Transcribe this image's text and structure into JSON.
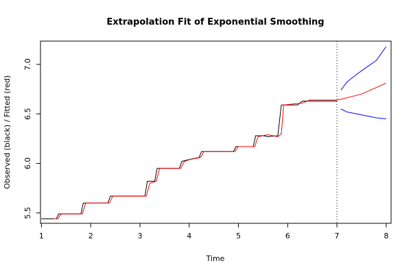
{
  "chart_data": {
    "type": "line",
    "title": "Extrapolation Fit of Exponential Smoothing",
    "xlabel": "Time",
    "ylabel": "Observed (black) / Fitted (red)",
    "xlim": [
      0.98,
      8.1
    ],
    "ylim": [
      5.395,
      7.235
    ],
    "x_ticks": [
      1,
      2,
      3,
      4,
      5,
      6,
      7,
      8
    ],
    "y_ticks": [
      5.5,
      6.0,
      6.5,
      7.0
    ],
    "y_tick_labels": [
      "5.5",
      "6.0",
      "6.5",
      "7.0"
    ],
    "forecast_origin": 7,
    "grid": false,
    "legend": null,
    "series": [
      {
        "role": "observed",
        "color": "#000000",
        "points": [
          [
            1.0,
            5.44
          ],
          [
            1.3,
            5.44
          ],
          [
            1.35,
            5.49
          ],
          [
            1.8,
            5.49
          ],
          [
            1.85,
            5.6
          ],
          [
            2.35,
            5.6
          ],
          [
            2.4,
            5.67
          ],
          [
            3.1,
            5.67
          ],
          [
            3.15,
            5.82
          ],
          [
            3.3,
            5.82
          ],
          [
            3.35,
            5.95
          ],
          [
            3.8,
            5.95
          ],
          [
            3.85,
            6.02
          ],
          [
            4.0,
            6.04
          ],
          [
            4.2,
            6.06
          ],
          [
            4.25,
            6.12
          ],
          [
            4.9,
            6.12
          ],
          [
            4.95,
            6.17
          ],
          [
            5.3,
            6.17
          ],
          [
            5.35,
            6.28
          ],
          [
            5.5,
            6.28
          ],
          [
            5.6,
            6.27
          ],
          [
            5.8,
            6.28
          ],
          [
            5.87,
            6.59
          ],
          [
            6.2,
            6.59
          ],
          [
            6.3,
            6.63
          ],
          [
            7.0,
            6.63
          ]
        ]
      },
      {
        "role": "fitted",
        "color": "#ff0000",
        "points": [
          [
            1.25,
            5.44
          ],
          [
            1.33,
            5.44
          ],
          [
            1.4,
            5.49
          ],
          [
            1.83,
            5.49
          ],
          [
            1.9,
            5.6
          ],
          [
            2.38,
            5.6
          ],
          [
            2.45,
            5.67
          ],
          [
            3.13,
            5.67
          ],
          [
            3.2,
            5.8
          ],
          [
            3.33,
            5.82
          ],
          [
            3.4,
            5.95
          ],
          [
            3.83,
            5.95
          ],
          [
            3.9,
            6.02
          ],
          [
            4.02,
            6.04
          ],
          [
            4.23,
            6.06
          ],
          [
            4.3,
            6.12
          ],
          [
            4.93,
            6.12
          ],
          [
            5.0,
            6.17
          ],
          [
            5.33,
            6.17
          ],
          [
            5.4,
            6.27
          ],
          [
            5.6,
            6.29
          ],
          [
            5.8,
            6.27
          ],
          [
            5.87,
            6.3
          ],
          [
            5.92,
            6.59
          ],
          [
            6.3,
            6.61
          ],
          [
            6.45,
            6.64
          ],
          [
            7.0,
            6.64
          ]
        ]
      },
      {
        "role": "forecast",
        "color": "#ff0000",
        "points": [
          [
            7.0,
            6.64
          ],
          [
            7.1,
            6.65
          ],
          [
            7.5,
            6.7
          ],
          [
            8.0,
            6.81
          ]
        ]
      },
      {
        "role": "upper-bound",
        "color": "#0000ff",
        "points": [
          [
            7.08,
            6.74
          ],
          [
            7.2,
            6.82
          ],
          [
            7.4,
            6.9
          ],
          [
            7.6,
            6.97
          ],
          [
            7.8,
            7.04
          ],
          [
            8.0,
            7.18
          ]
        ]
      },
      {
        "role": "lower-bound",
        "color": "#0000ff",
        "points": [
          [
            7.08,
            6.55
          ],
          [
            7.2,
            6.52
          ],
          [
            7.4,
            6.5
          ],
          [
            7.6,
            6.48
          ],
          [
            7.8,
            6.46
          ],
          [
            8.0,
            6.45
          ]
        ]
      }
    ]
  }
}
